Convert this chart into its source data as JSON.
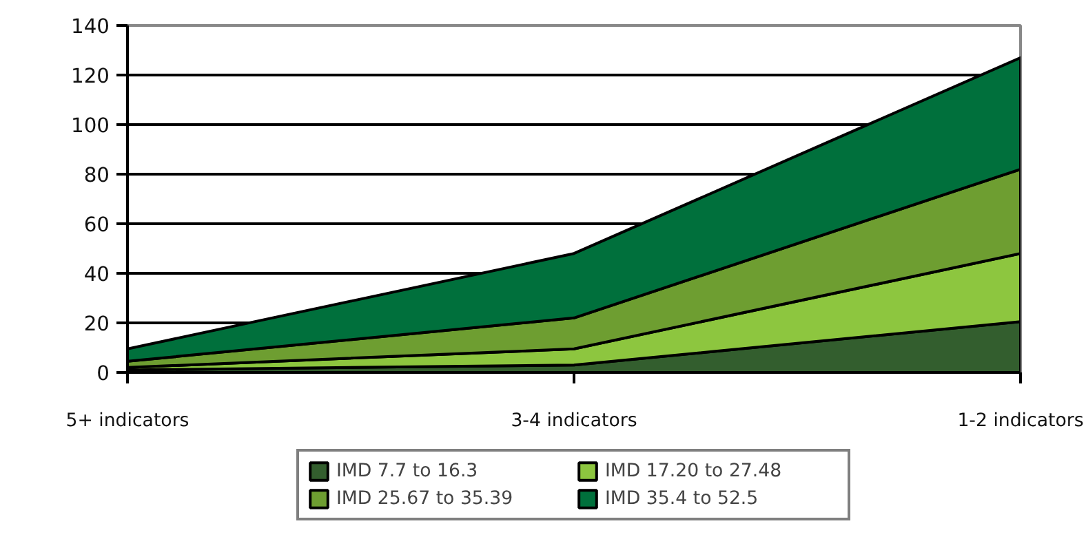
{
  "chart_data": {
    "type": "area",
    "stacked": true,
    "categories": [
      "5+ indicators",
      "3-4 indicators",
      "1-2 indicators"
    ],
    "series": [
      {
        "name": "IMD 7.7 to 16.3",
        "color": "#335e2e",
        "values": [
          1,
          3,
          20.5
        ]
      },
      {
        "name": "IMD 17.20 to 27.48",
        "color": "#8dc63f",
        "values": [
          1,
          6.5,
          27.5
        ]
      },
      {
        "name": "IMD 25.67 to 35.39",
        "color": "#6e9e31",
        "values": [
          2.5,
          12.5,
          34
        ]
      },
      {
        "name": "IMD 35.4 to 52.5",
        "color": "#00703c",
        "values": [
          5,
          26,
          45
        ]
      }
    ],
    "ylim": [
      0,
      140
    ],
    "yticks": [
      0,
      20,
      40,
      60,
      80,
      100,
      120,
      140
    ],
    "grid": "y",
    "legend": "bottom"
  }
}
